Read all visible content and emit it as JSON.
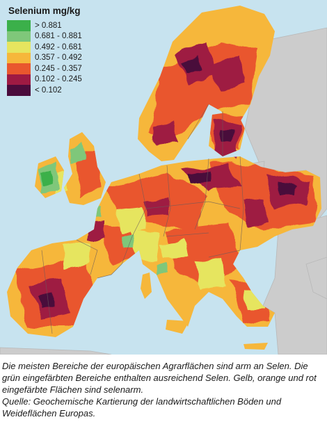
{
  "legend": {
    "title": "Selenium mg/kg",
    "items": [
      {
        "label": "> 0.881",
        "color": "#3bb04a"
      },
      {
        "label": "0.681 - 0.881",
        "color": "#7fc77a"
      },
      {
        "label": "0.492 - 0.681",
        "color": "#e6e55f"
      },
      {
        "label": "0.357 - 0.492",
        "color": "#f6b73b"
      },
      {
        "label": "0.245 - 0.357",
        "color": "#e9572e"
      },
      {
        "label": "0.102 - 0.245",
        "color": "#9e1a43"
      },
      {
        "label": "< 0.102",
        "color": "#4a0b3b"
      }
    ]
  },
  "caption": {
    "line1": "Die meisten Bereiche der europäischen Agrarflächen sind arm an Selen. Die grün eingefärbten Bereiche enthalten ausreichend Selen. Gelb, orange und rot eingefärbte Flächen sind selenarm.",
    "line2": "Quelle: Geochemische Kartierung der landwirtschaftlichen Böden und Weideflächen Europas."
  },
  "colors": {
    "sea": "#c7e3ef",
    "no_data_land": "#cccccc",
    "border": "#7a6a6a"
  }
}
